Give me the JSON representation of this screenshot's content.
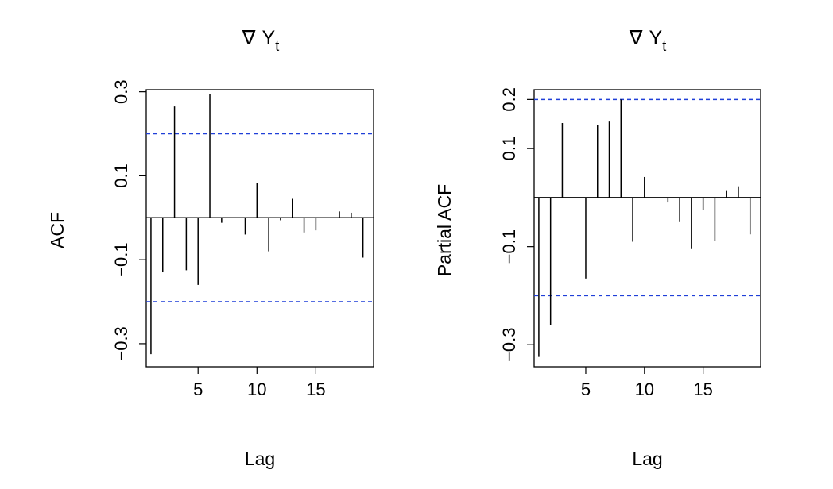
{
  "chart_data": [
    {
      "type": "bar",
      "subtype": "acf-stem",
      "title_symbol": "∇",
      "title_main": "Y",
      "title_subscript": "t",
      "xlabel": "Lag",
      "ylabel": "ACF",
      "xlim": [
        0.6,
        19.9
      ],
      "ylim": [
        -0.355,
        0.305
      ],
      "xticks": [
        5,
        10,
        15
      ],
      "yticks": [
        -0.3,
        -0.1,
        0.1,
        0.3
      ],
      "ytick_labels": [
        "−0.3",
        "−0.1",
        "0.1",
        "0.3"
      ],
      "confidence_band": 0.2,
      "x": [
        1,
        2,
        3,
        4,
        5,
        6,
        7,
        8,
        9,
        10,
        11,
        12,
        13,
        14,
        15,
        16,
        17,
        18,
        19
      ],
      "values": [
        -0.325,
        -0.13,
        0.265,
        -0.125,
        -0.16,
        0.295,
        -0.012,
        0.0,
        -0.04,
        0.082,
        -0.08,
        -0.006,
        0.045,
        -0.035,
        -0.03,
        0.0,
        0.015,
        0.012,
        -0.095
      ],
      "grid": false,
      "colors": {
        "bars": "#000000",
        "band": "#1f3fd8",
        "axes": "#000000"
      }
    },
    {
      "type": "bar",
      "subtype": "pacf-stem",
      "title_symbol": "∇",
      "title_main": "Y",
      "title_subscript": "t",
      "xlabel": "Lag",
      "ylabel": "Partial ACF",
      "xlim": [
        0.6,
        19.9
      ],
      "ylim": [
        -0.345,
        0.22
      ],
      "xticks": [
        5,
        10,
        15
      ],
      "yticks": [
        -0.3,
        -0.1,
        0.1,
        0.2
      ],
      "ytick_labels": [
        "−0.3",
        "−0.1",
        "0.1",
        "0.2"
      ],
      "confidence_band": 0.2,
      "x": [
        1,
        2,
        3,
        4,
        5,
        6,
        7,
        8,
        9,
        10,
        11,
        12,
        13,
        14,
        15,
        16,
        17,
        18,
        19
      ],
      "values": [
        -0.325,
        -0.26,
        0.152,
        0.0,
        -0.165,
        0.148,
        0.155,
        0.2,
        -0.09,
        0.042,
        0.0,
        -0.01,
        -0.05,
        -0.105,
        -0.025,
        -0.088,
        0.015,
        0.023,
        -0.075
      ],
      "grid": false,
      "colors": {
        "bars": "#000000",
        "band": "#1f3fd8",
        "axes": "#000000"
      }
    }
  ]
}
